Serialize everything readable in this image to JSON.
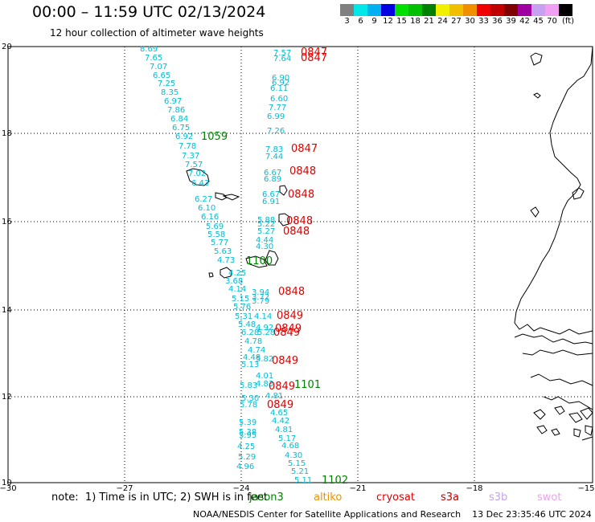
{
  "header": {
    "title": "00:00 – 11:59 UTC 02/13/2024",
    "subtitle": "12 hour collection of altimeter wave heights"
  },
  "colorbar": {
    "colors": [
      "#808080",
      "#00e8e8",
      "#00b0f0",
      "#0000e0",
      "#00e000",
      "#00c000",
      "#008000",
      "#f0f000",
      "#f0c000",
      "#f09000",
      "#f00000",
      "#c00000",
      "#800000",
      "#a000a0",
      "#c8a0f0",
      "#f0a0f0",
      "#000000"
    ],
    "labels": [
      "3",
      "6",
      "9",
      "12",
      "15",
      "18",
      "21",
      "24",
      "27",
      "30",
      "33",
      "36",
      "39",
      "42",
      "45",
      "70",
      "(ft)"
    ]
  },
  "axes": {
    "x_ticks": [
      "−30",
      "−27",
      "−24",
      "−21",
      "−18",
      "−15"
    ],
    "y_ticks": [
      "20",
      "18",
      "16",
      "14",
      "12",
      "10"
    ]
  },
  "track_values": {
    "left_track": [
      "8.69",
      "7.65",
      "7.07",
      "6.65",
      "7.25",
      "8.35",
      "6.97",
      "7.86",
      "6.84",
      "6.75",
      "6.92",
      "7.78",
      "7.37",
      "7.57",
      "7.02",
      "6.43",
      "6.27",
      "6.10",
      "6.16",
      "5.69",
      "5.58",
      "5.77",
      "5.63",
      "4.73",
      "4.25",
      "3.68",
      "4.14",
      "5.15",
      "5.76",
      "5.31",
      "5.48",
      "6.28",
      "4.78",
      "4.74",
      "4.48",
      "5.13",
      "4.01",
      "5.83",
      "5.30",
      "5.78",
      "5.39",
      "5.38",
      "5.95",
      "4.25",
      "5.29",
      "4.96"
    ],
    "right_track": [
      "7.57",
      "7.64",
      "6.90",
      "6.92",
      "6.11",
      "6.60",
      "7.77",
      "6.99",
      "7.26",
      "7.83",
      "7.44",
      "6.67",
      "6.89",
      "6.67",
      "6.91",
      "5.88",
      "5.22",
      "5.27",
      "4.44",
      "4.30",
      "3.94",
      "3.72",
      "3.79",
      "4.14",
      "4.92",
      "5.28",
      "5.82",
      "4.83",
      "4.81",
      "4.65",
      "4.42",
      "4.81",
      "5.17",
      "4.68",
      "4.30",
      "5.15",
      "5.21",
      "5.11"
    ]
  },
  "time_labels": [
    {
      "text": "0847",
      "color": "#e00000"
    },
    {
      "text": "0847",
      "color": "#e00000"
    },
    {
      "text": "1059",
      "color": "#008000"
    },
    {
      "text": "0847",
      "color": "#e00000"
    },
    {
      "text": "0848",
      "color": "#e00000"
    },
    {
      "text": "0848",
      "color": "#e00000"
    },
    {
      "text": "0848",
      "color": "#e00000"
    },
    {
      "text": "0848",
      "color": "#e00000"
    },
    {
      "text": "1100",
      "color": "#008000"
    },
    {
      "text": "0848",
      "color": "#e00000"
    },
    {
      "text": "0849",
      "color": "#e00000"
    },
    {
      "text": "0849",
      "color": "#e00000"
    },
    {
      "text": "0849",
      "color": "#e00000"
    },
    {
      "text": "0849",
      "color": "#e00000"
    },
    {
      "text": "1101",
      "color": "#008000"
    },
    {
      "text": "0849",
      "color": "#e00000"
    },
    {
      "text": "0849",
      "color": "#e00000"
    },
    {
      "text": "1102",
      "color": "#008000"
    }
  ],
  "footer": {
    "note": "note:  1) Time is in UTC; 2) SWH is in feet",
    "legend": [
      {
        "label": "jason3",
        "color": "#008000"
      },
      {
        "label": "altiko",
        "color": "#f09000"
      },
      {
        "label": "cryosat",
        "color": "#e00000"
      },
      {
        "label": "s3a",
        "color": "#c00000"
      },
      {
        "label": "s3b",
        "color": "#c8a0f0"
      },
      {
        "label": "swot",
        "color": "#f0a0f0"
      }
    ],
    "credit": "NOAA/NESDIS Center for Satellite Applications and Research    13 Dec 23:35:46 UTC 2024"
  }
}
